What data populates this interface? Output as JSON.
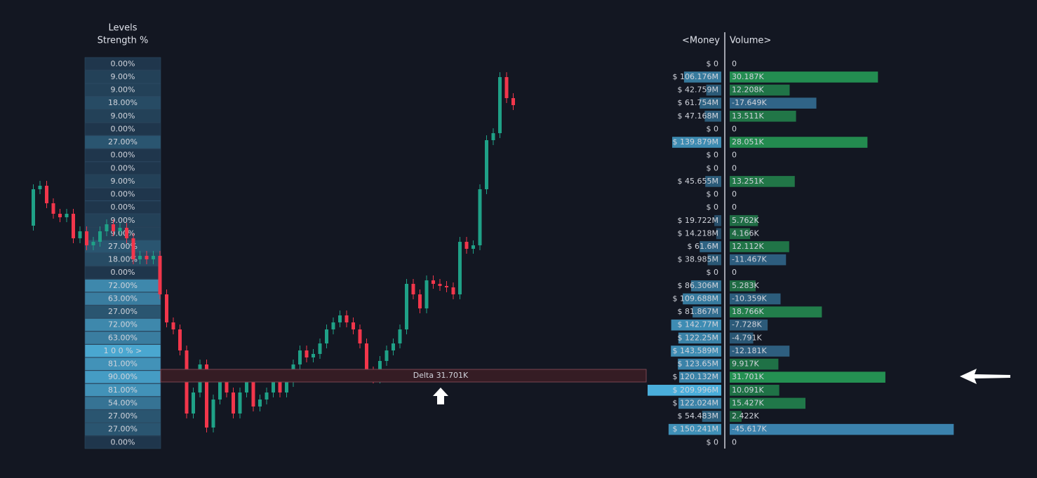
{
  "levels": {
    "title_lines": [
      "Levels",
      "Strength %"
    ],
    "values": [
      0,
      9,
      9,
      18,
      9,
      0,
      27,
      0,
      0,
      9,
      0,
      0,
      9,
      9,
      27,
      18,
      0,
      72,
      63,
      27,
      72,
      63,
      100,
      81,
      90,
      81,
      54,
      27,
      27,
      0
    ],
    "value_labels": [
      "0.00%",
      "9.00%",
      "9.00%",
      "18.00%",
      "9.00%",
      "0.00%",
      "27.00%",
      "0.00%",
      "0.00%",
      "9.00%",
      "0.00%",
      "0.00%",
      "9.00%",
      "9.00%",
      "27.00%",
      "18.00%",
      "0.00%",
      "72.00%",
      "63.00%",
      "27.00%",
      "72.00%",
      "63.00%",
      "1 0 0 % >",
      "81.00%",
      "90.00%",
      "81.00%",
      "54.00%",
      "27.00%",
      "27.00%",
      "0.00%"
    ]
  },
  "money": {
    "header": "<Money",
    "values": [
      0,
      106176000,
      42759000,
      61754000,
      47168000,
      0,
      139879000,
      0,
      0,
      45655000,
      0,
      0,
      19722000,
      14218000,
      61600000,
      38985000,
      0,
      86306000,
      109688000,
      81867000,
      142770000,
      122250000,
      143589000,
      123650000,
      120132000,
      209996000,
      122024000,
      54483000,
      150241000,
      0
    ],
    "value_labels": [
      "$ 0",
      "$ 106.176M",
      "$ 42.759M",
      "$ 61.754M",
      "$ 47.168M",
      "$ 0",
      "$ 139.879M",
      "$ 0",
      "$ 0",
      "$ 45.655M",
      "$ 0",
      "$ 0",
      "$ 19.722M",
      "$ 14.218M",
      "$ 61.6M",
      "$ 38.985M",
      "$ 0",
      "$ 86.306M",
      "$ 109.688M",
      "$ 81.867M",
      "$ 142.77M",
      "$ 122.25M",
      "$ 143.589M",
      "$ 123.65M",
      "$ 120.132M",
      "$ 209.996M",
      "$ 122.024M",
      "$ 54.483M",
      "$ 150.241M",
      "$ 0"
    ]
  },
  "volume": {
    "header": "Volume>",
    "values": [
      0,
      30187,
      12208,
      -17649,
      13511,
      0,
      28051,
      0,
      0,
      13251,
      0,
      0,
      5762,
      4166,
      12112,
      -11467,
      0,
      5283,
      -10359,
      18766,
      -7728,
      -4791,
      -12181,
      9917,
      31701,
      10091,
      15427,
      2422,
      -45617,
      0
    ],
    "value_labels": [
      "0",
      "30.187K",
      "12.208K",
      "-17.649K",
      "13.511K",
      "0",
      "28.051K",
      "0",
      "0",
      "13.251K",
      "0",
      "0",
      "5.762K",
      "4.166K",
      "12.112K",
      "-11.467K",
      "0",
      "5.283K",
      "-10.359K",
      "18.766K",
      "-7.728K",
      "-4.791K",
      "-12.181K",
      "9.917K",
      "31.701K",
      "10.091K",
      "15.427K",
      "2.422K",
      "-45.617K",
      "0"
    ],
    "positive_color": "#27a35a",
    "negative_color": "#3b82ad"
  },
  "delta_label": "Delta 31.701K"
}
